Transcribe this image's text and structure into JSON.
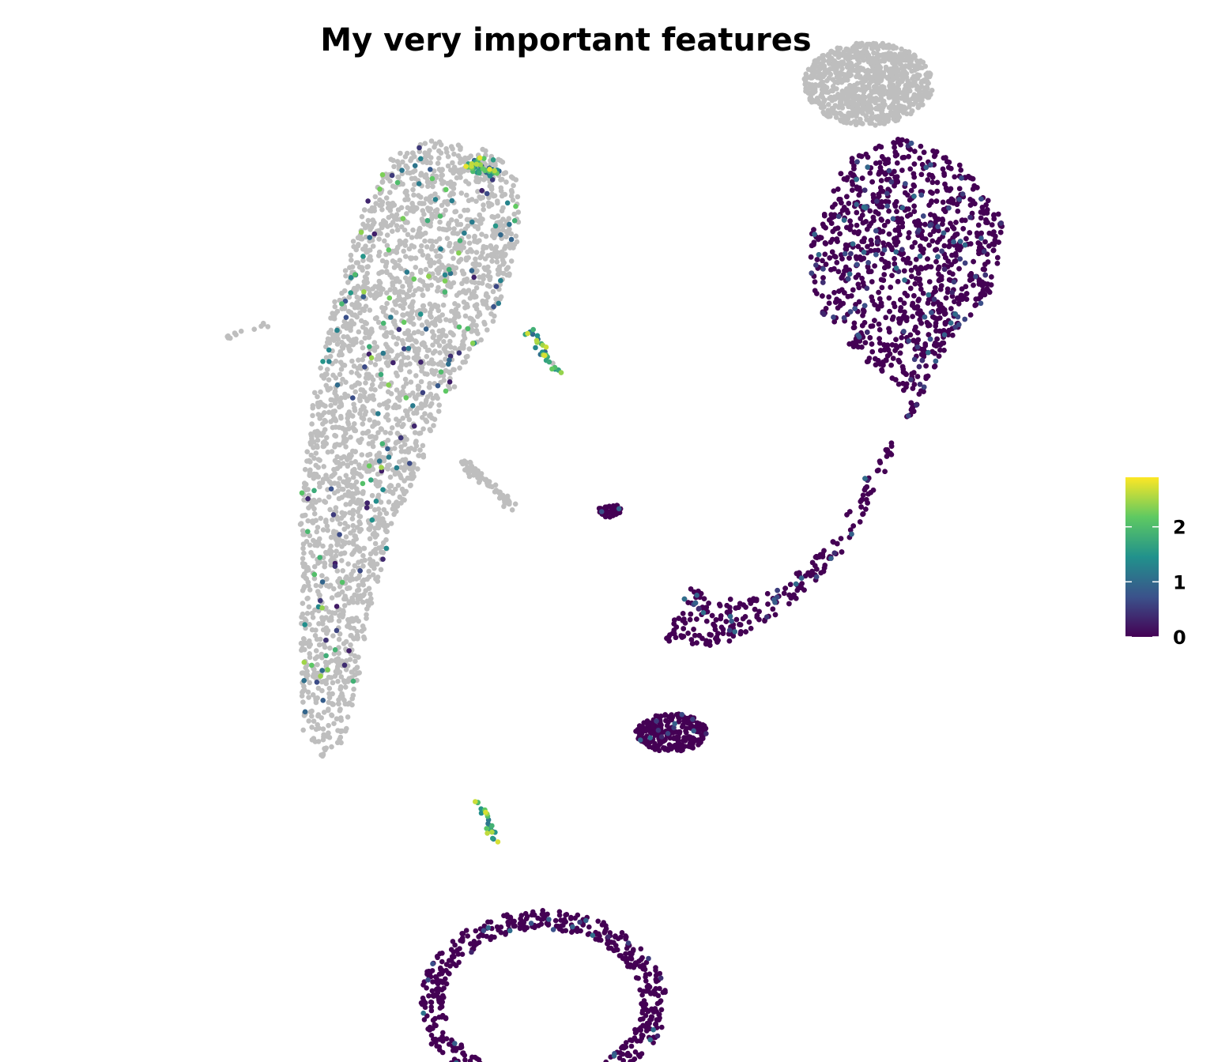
{
  "chart_data": {
    "type": "scatter",
    "title": "My very important features",
    "xlabel": "",
    "ylabel": "",
    "axes_visible": false,
    "grid": false,
    "missing_color": "#bebebe",
    "colorbar": {
      "palette": "viridis",
      "colors": [
        "#440154",
        "#3b528b",
        "#21918c",
        "#5ec962",
        "#fde725"
      ],
      "min": 0,
      "max": 2.9,
      "ticks": [
        0,
        1,
        2
      ],
      "tick_labels": [
        "0",
        "1",
        "2"
      ],
      "placement": "right"
    },
    "clusters": [
      {
        "id": "upper-left-large",
        "expression": "low-mostly-missing",
        "shape": "polygon",
        "outline": [
          [
            -8.6,
            0.6
          ],
          [
            -8.2,
            4.0
          ],
          [
            -7.6,
            6.8
          ],
          [
            -6.8,
            9.4
          ],
          [
            -6.0,
            10.9
          ],
          [
            -5.0,
            11.4
          ],
          [
            -4.0,
            11.3
          ],
          [
            -3.1,
            11.0
          ],
          [
            -2.5,
            10.2
          ],
          [
            -2.4,
            9.0
          ],
          [
            -2.7,
            7.5
          ],
          [
            -3.2,
            6.1
          ],
          [
            -3.9,
            4.8
          ],
          [
            -4.7,
            3.3
          ],
          [
            -5.3,
            1.8
          ],
          [
            -6.0,
            0.2
          ],
          [
            -6.6,
            -2.2
          ],
          [
            -7.0,
            -4.5
          ],
          [
            -7.4,
            -6.1
          ],
          [
            -8.0,
            -6.4
          ],
          [
            -8.5,
            -5.6
          ],
          [
            -8.6,
            -3.5
          ],
          [
            -8.5,
            -1.0
          ]
        ],
        "n_points": 2600
      },
      {
        "id": "upper-left-hotspot",
        "expression": "high",
        "shape": "segment",
        "from": [
          -3.8,
          10.7
        ],
        "to": [
          -3.1,
          10.4
        ],
        "spread": 0.25,
        "n_points": 55
      },
      {
        "id": "left-stray-strand",
        "expression": "missing",
        "shape": "segment",
        "from": [
          -10.7,
          5.7
        ],
        "to": [
          -9.5,
          6.1
        ],
        "spread": 0.1,
        "n_points": 12
      },
      {
        "id": "mid-strand",
        "expression": "missing",
        "shape": "segment",
        "from": [
          -4.0,
          2.1
        ],
        "to": [
          -2.6,
          0.8
        ],
        "spread": 0.15,
        "n_points": 80
      },
      {
        "id": "mid-arc",
        "expression": "high",
        "shape": "segment",
        "from": [
          -2.2,
          5.9
        ],
        "to": [
          -1.3,
          4.6
        ],
        "spread": 0.15,
        "n_points": 30
      },
      {
        "id": "small-center",
        "expression": "zero",
        "shape": "blob",
        "center": [
          0.1,
          0.7
        ],
        "r": [
          0.35,
          0.2
        ],
        "n_points": 40
      },
      {
        "id": "lower-center-strand",
        "expression": "high",
        "shape": "segment",
        "from": [
          -3.6,
          -7.6
        ],
        "to": [
          -3.0,
          -9.1
        ],
        "spread": 0.1,
        "n_points": 25
      },
      {
        "id": "upper-right-top",
        "expression": "missing",
        "shape": "blob",
        "center": [
          7.3,
          13.0
        ],
        "r": [
          1.8,
          1.2
        ],
        "n_points": 900
      },
      {
        "id": "upper-right-main",
        "expression": "zero",
        "shape": "polygon",
        "outline": [
          [
            5.7,
            8.7
          ],
          [
            6.7,
            10.8
          ],
          [
            8.2,
            11.5
          ],
          [
            9.9,
            10.8
          ],
          [
            11.1,
            9.0
          ],
          [
            10.8,
            7.1
          ],
          [
            9.5,
            5.5
          ],
          [
            8.6,
            3.6
          ],
          [
            7.3,
            1.8
          ],
          [
            6.1,
            -0.4
          ],
          [
            4.7,
            -1.6
          ],
          [
            3.2,
            -1.9
          ],
          [
            2.3,
            -1.5
          ],
          [
            1.6,
            -3.1
          ],
          [
            3.2,
            -3.2
          ],
          [
            5.1,
            -2.1
          ],
          [
            6.7,
            -0.4
          ],
          [
            7.9,
            2.1
          ],
          [
            8.5,
            4.0
          ],
          [
            7.0,
            5.2
          ],
          [
            6.0,
            6.4
          ],
          [
            5.6,
            7.6
          ]
        ],
        "n_points": 2800
      },
      {
        "id": "lower-right-blob",
        "expression": "zero",
        "shape": "blob",
        "center": [
          1.8,
          -5.7
        ],
        "r": [
          1.0,
          0.55
        ],
        "n_points": 260
      },
      {
        "id": "bottom-ring",
        "expression": "zero",
        "shape": "ring",
        "center": [
          -1.8,
          -13.5
        ],
        "r": [
          3.1,
          2.4
        ],
        "width": 0.55,
        "n_points": 650
      }
    ]
  }
}
